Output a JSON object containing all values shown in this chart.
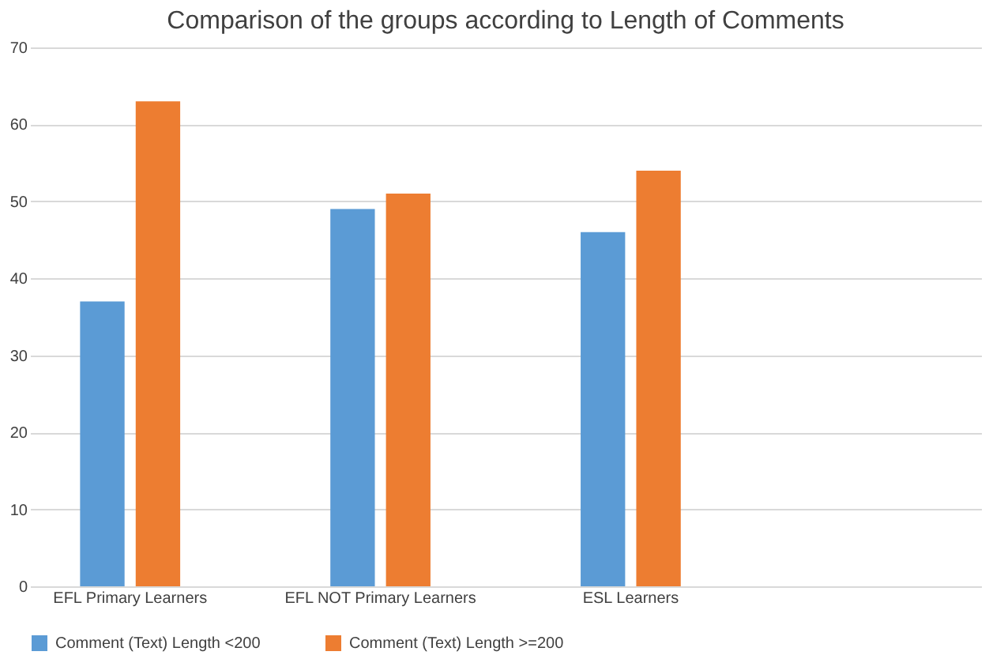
{
  "chart_data": {
    "type": "bar",
    "title": "Comparison of the groups according to Length of Comments",
    "categories": [
      "EFL Primary Learners",
      "EFL  NOT Primary Learners",
      "ESL  Learners",
      null
    ],
    "series": [
      {
        "name": "Comment (Text) Length <200",
        "color": "#5b9bd5",
        "values": [
          37,
          49,
          46,
          null
        ]
      },
      {
        "name": "Comment (Text) Length >=200",
        "color": "#ed7d31",
        "values": [
          63,
          51,
          54,
          null
        ]
      }
    ],
    "ylim": [
      0,
      70
    ],
    "yticks": [
      0,
      10,
      20,
      30,
      40,
      50,
      60,
      70
    ],
    "grid": "y",
    "legend": "bottom"
  }
}
